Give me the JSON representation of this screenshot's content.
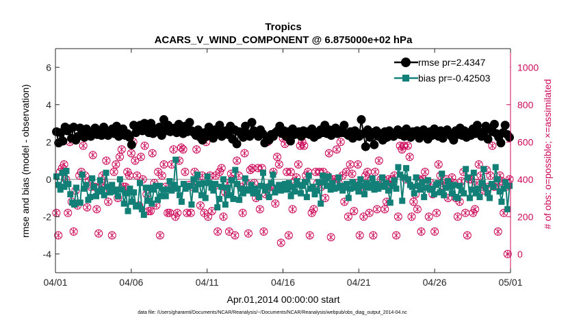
{
  "chart_data": {
    "type": "line",
    "title": "Tropics",
    "subtitle": "ACARS_V_WIND_COMPONENT @ 6.875000e+02 hPa",
    "xlabel": "Apr.01,2014 00:00:00 start",
    "ylabel_left": "rmse and bias (model - observation)",
    "ylabel_right": "# of obs: o=possible; ×=assimilated",
    "footnote": "data file: /Users/gharamti/Documents/NCAR/Reanalysis/~/Documents/NCAR/Reanalysis/webpub/obs_diag_output_2014-04.nc",
    "xlim": [
      0,
      30
    ],
    "ylim_left": [
      -5,
      7
    ],
    "ylim_right": [
      -100,
      1100
    ],
    "x_ticks": [
      0,
      5,
      10,
      15,
      20,
      25,
      30
    ],
    "x_tick_labels": [
      "04/01",
      "04/06",
      "04/11",
      "04/16",
      "04/21",
      "04/26",
      "05/01"
    ],
    "y_left_ticks": [
      -4,
      -2,
      0,
      2,
      4,
      6
    ],
    "y_left_tick_labels": [
      "-4",
      "-2",
      "0",
      "2",
      "4",
      "6"
    ],
    "y_right_ticks": [
      0,
      200,
      400,
      600,
      800,
      1000
    ],
    "y_right_tick_labels": [
      "0",
      "200",
      "400",
      "600",
      "800",
      "1000"
    ],
    "zero_line": 0,
    "colors": {
      "rmse": "#000000",
      "bias": "#138078",
      "obs": "#cc0a5a",
      "zero": "#aaaaaa"
    },
    "series": [
      {
        "name": "rmse",
        "legend": "rmse pr=2.4347",
        "axis": "left",
        "marker": "circle",
        "values": [
          2.55,
          1.95,
          2.5,
          2.05,
          2.8,
          2.6,
          2.7,
          2.2,
          2.8,
          2.1,
          2.3,
          2.75,
          2.35,
          2.25,
          2.7,
          2.45,
          2.3,
          2.5,
          2.75,
          2.4,
          2.6,
          2.35,
          2.8,
          2.5,
          2.35,
          2.6,
          2.7,
          2.45,
          2.85,
          2.3,
          2.55,
          2.7,
          2.35,
          2.45,
          2.25,
          1.85,
          2.9,
          2.5,
          2.75,
          2.9,
          2.6,
          3.0,
          2.7,
          2.5,
          3.0,
          2.45,
          2.7,
          2.55,
          2.8,
          2.35,
          3.2,
          2.6,
          2.9,
          2.55,
          2.65,
          2.75,
          2.5,
          2.95,
          2.6,
          2.45,
          2.85,
          2.55,
          3.05,
          2.6,
          2.5,
          2.35,
          2.65,
          2.25,
          2.1,
          2.5,
          2.3,
          2.8,
          2.45,
          2.2,
          2.65,
          2.45,
          2.9,
          2.3,
          2.5,
          2.6,
          2.4,
          2.85,
          2.15,
          2.65,
          1.9,
          2.55,
          2.45,
          2.25,
          2.85,
          2.45,
          2.3,
          3.05,
          2.6,
          2.5,
          2.3,
          2.65,
          2.45,
          1.95,
          2.25,
          2.1,
          2.4,
          2.3,
          2.5,
          2.6,
          2.85,
          2.45,
          2.6,
          2.3,
          2.55,
          2.05,
          2.7,
          2.4,
          2.5,
          2.55,
          2.3,
          2.6,
          2.45,
          2.55,
          2.4,
          2.7,
          2.25,
          2.5,
          2.4,
          2.65,
          2.5,
          2.9,
          2.45,
          2.65,
          2.35,
          2.55,
          2.75,
          2.45,
          2.6,
          2.5,
          2.9,
          2.45,
          2.35,
          2.55,
          2.2,
          2.6,
          2.45,
          2.3,
          3.2,
          2.45,
          1.75,
          2.65,
          2.25,
          2.5,
          1.85,
          2.6,
          2.3,
          2.45,
          2.1,
          2.55,
          2.25,
          2.6,
          2.4,
          2.3,
          2.5,
          2.65,
          2.4,
          2.55,
          2.3,
          2.7,
          2.45,
          2.25,
          2.55,
          2.4,
          2.6,
          2.2,
          2.5,
          2.65,
          2.4,
          2.15,
          2.55,
          2.35,
          2.7,
          2.45,
          2.3,
          2.6,
          2.2,
          2.5,
          2.65,
          2.45,
          2.3,
          2.1,
          2.6,
          2.4,
          2.75,
          2.35,
          2.6,
          2.25,
          2.5,
          2.35,
          2.7,
          2.45,
          2.9,
          2.55,
          2.3,
          2.5,
          2.85,
          2.15,
          2.7,
          2.55,
          2.95,
          2.45,
          2.25,
          1.95,
          2.5,
          2.9,
          2.4,
          2.25
        ]
      },
      {
        "name": "bias",
        "legend": "bias pr=-0.42503",
        "axis": "left",
        "marker": "square",
        "values": [
          0.15,
          -0.3,
          -0.55,
          0.35,
          -0.4,
          0.45,
          -0.25,
          -0.8,
          -1.25,
          -1.35,
          -0.45,
          -1.25,
          -1.25,
          0.25,
          -0.5,
          -0.3,
          -1.1,
          -0.95,
          0.05,
          -0.4,
          -0.9,
          -0.65,
          -0.05,
          -0.55,
          -0.85,
          0.35,
          -0.4,
          -0.7,
          -0.3,
          -0.65,
          -0.55,
          -0.9,
          0.0,
          -0.55,
          -1.3,
          -0.75,
          -1.7,
          -0.5,
          -1.2,
          -0.7,
          -1.45,
          -1.4,
          -0.2,
          -1.6,
          -1.9,
          -0.45,
          -1.15,
          -0.45,
          -1.3,
          -0.55,
          -0.35,
          -1.1,
          -0.35,
          -0.9,
          -0.55,
          -0.9,
          -0.55,
          -0.1,
          -0.6,
          -0.3,
          1.05,
          -0.5,
          -0.85,
          -1.2,
          -0.25,
          -0.5,
          -0.4,
          -0.35,
          -1.35,
          0.0,
          -0.55,
          0.25,
          -0.25,
          -0.85,
          -0.2,
          -1.0,
          0.15,
          -0.2,
          -0.45,
          -0.6,
          -0.25,
          -1.5,
          -1.05,
          -0.4,
          0.0,
          -1.35,
          -0.45,
          -0.85,
          -0.05,
          -1.05,
          0.5,
          -0.25,
          -1.1,
          -0.5,
          -0.75,
          0.05,
          -0.55,
          -0.6,
          -0.3,
          -0.75,
          -0.5,
          -0.7,
          -0.95,
          -0.35,
          0.35,
          -0.6,
          -0.4,
          -0.95,
          -0.2,
          0.25,
          -0.7,
          -0.45,
          -0.3,
          -0.6,
          -0.4,
          -0.25,
          -0.55,
          -0.2,
          -0.9,
          -0.4,
          -0.65,
          -0.1,
          -0.3,
          -0.75,
          -0.35,
          -0.15,
          -0.95,
          0.2,
          -0.5,
          -0.4,
          -0.8,
          -0.6,
          -0.15,
          -1.3,
          0.2,
          -0.15,
          -0.35,
          0.15,
          -0.55,
          -0.2,
          -0.5,
          -0.45,
          0.1,
          -0.35,
          -0.6,
          -0.45,
          -0.25,
          -1.0,
          -0.5,
          -0.15,
          -0.45,
          -0.3,
          -0.65,
          0.0,
          -0.35,
          -0.8,
          -0.2,
          -0.45,
          -0.3,
          0.05,
          -0.55,
          -0.25,
          -0.5,
          -0.35,
          0.1,
          -0.4,
          -0.2,
          -0.6,
          -1.25,
          -0.35,
          -0.05,
          -0.5,
          0.65,
          0.25,
          -1.15,
          0.1,
          0.6,
          0.0,
          -0.3,
          -0.4,
          -0.75,
          0.1,
          -0.35,
          -0.55,
          -0.15,
          -0.95,
          -0.45,
          -0.05,
          -0.55,
          -0.5,
          -0.8,
          -0.3,
          -0.2,
          -0.7,
          0.3,
          -0.85,
          -0.45,
          -0.1,
          -0.4,
          -0.75,
          -0.3,
          -0.95,
          -1.0,
          -0.35,
          -0.6,
          -0.75,
          0.55,
          0.1,
          -1.0,
          -0.55,
          0.35,
          -0.75,
          -0.5,
          -0.95,
          -0.2,
          0.55,
          -0.45,
          -0.75,
          -1.0,
          -0.25,
          -0.4,
          0.65,
          0.0,
          -0.65,
          -1.2,
          -0.5,
          -0.15,
          -1.6,
          -0.35
        ]
      },
      {
        "name": "obs",
        "axis": "right",
        "marker": "circle-x",
        "values": [
          220,
          100,
          440,
          460,
          480,
          400,
          220,
          600,
          280,
          120,
          340,
          260,
          420,
          440,
          580,
          420,
          250,
          390,
          360,
          530,
          360,
          240,
          110,
          360,
          420,
          380,
          500,
          280,
          340,
          100,
          440,
          480,
          300,
          520,
          560,
          360,
          360,
          440,
          420,
          540,
          600,
          500,
          420,
          260,
          520,
          400,
          580,
          320,
          230,
          230,
          540,
          380,
          260,
          440,
          100,
          420,
          480,
          360,
          220,
          220,
          480,
          560,
          200,
          220,
          500,
          570,
          560,
          440,
          220,
          370,
          220,
          360,
          440,
          560,
          380,
          260,
          420,
          220,
          600,
          200,
          420,
          230,
          360,
          420,
          120,
          440,
          460,
          200,
          330,
          380,
          120,
          430,
          400,
          100,
          500,
          420,
          360,
          220,
          540,
          380,
          110,
          450,
          460,
          380,
          300,
          460,
          240,
          460,
          120,
          320,
          600,
          360,
          360,
          440,
          270,
          520,
          480,
          60,
          620,
          590,
          440,
          100,
          440,
          240,
          390,
          410,
          480,
          580,
          600,
          580,
          420,
          440,
          100,
          220,
          240,
          440,
          380,
          440,
          360,
          440,
          300,
          420,
          540,
          90,
          400,
          400,
          560,
          380,
          600,
          420,
          280,
          440,
          200,
          480,
          430,
          230,
          380,
          480,
          100,
          360,
          200,
          420,
          440,
          220,
          400,
          100,
          440,
          240,
          500,
          400,
          400,
          240,
          280,
          400,
          370,
          400,
          420,
          100,
          200,
          580,
          560,
          580,
          400,
          580,
          520,
          200,
          280,
          320,
          240,
          400,
          120,
          400,
          440,
          360,
          200,
          380,
          320,
          120,
          220,
          480,
          420,
          380,
          360,
          400,
          300,
          370,
          410,
          380,
          300,
          200,
          280,
          390,
          440,
          220,
          100,
          400,
          400,
          220,
          240,
          380,
          480,
          420,
          360,
          340,
          450,
          360,
          420,
          580,
          360,
          370,
          120,
          420,
          390,
          220,
          360,
          0,
          400
        ]
      }
    ]
  }
}
